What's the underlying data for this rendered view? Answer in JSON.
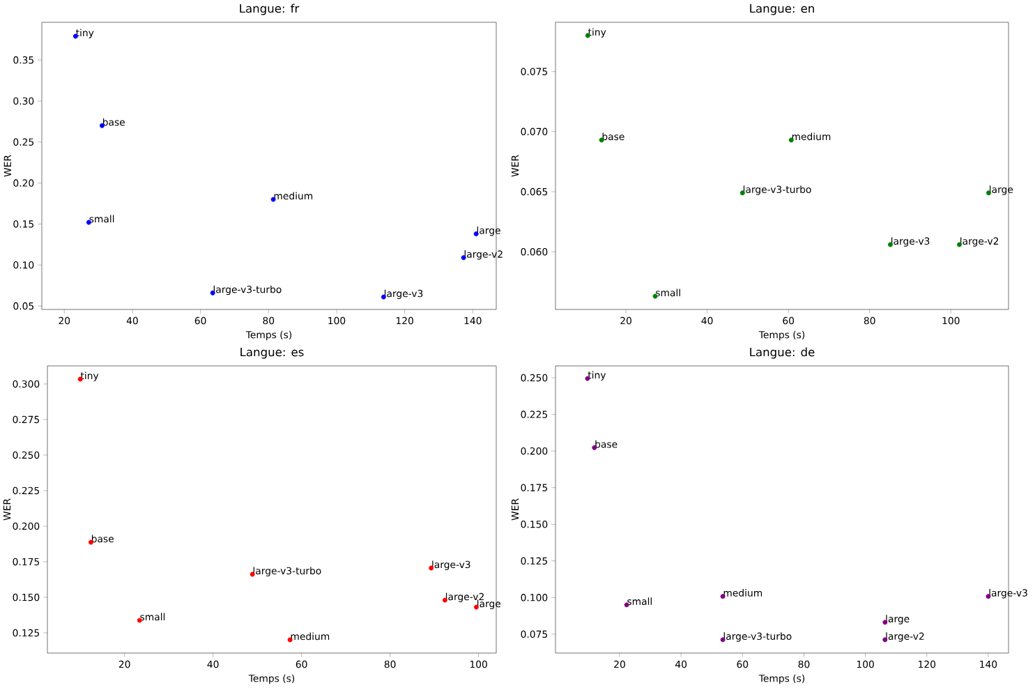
{
  "chart_data": [
    {
      "type": "scatter",
      "title": "Langue: fr",
      "xlabel": "Temps (s)",
      "ylabel": "WER",
      "series": [
        {
          "color": "#0000ff",
          "x": [
            23.3,
            31.1,
            27.2,
            81.4,
            141.0,
            137.3,
            63.6,
            113.8
          ],
          "values": [
            0.379,
            0.27,
            0.152,
            0.18,
            0.138,
            0.109,
            0.066,
            0.061
          ]
        }
      ],
      "annotations": [
        {
          "text": "tiny",
          "x": 23.3,
          "y": 0.379
        },
        {
          "text": "base",
          "x": 31.1,
          "y": 0.27
        },
        {
          "text": "small",
          "x": 27.2,
          "y": 0.152
        },
        {
          "text": "medium",
          "x": 81.4,
          "y": 0.18
        },
        {
          "text": "large",
          "x": 141.0,
          "y": 0.138
        },
        {
          "text": "large-v2",
          "x": 137.3,
          "y": 0.109
        },
        {
          "text": "large-v3-turbo",
          "x": 63.6,
          "y": 0.066
        },
        {
          "text": "large-v3",
          "x": 113.8,
          "y": 0.061
        }
      ],
      "xlim": [
        13.4,
        146.9
      ],
      "ylim": [
        0.0458,
        0.396
      ],
      "xticks": [
        20,
        40,
        60,
        80,
        100,
        120,
        140
      ],
      "yticks": [
        0.05,
        {
          "value": 0.1,
          "label": "0.10"
        },
        0.15,
        {
          "value": 0.2,
          "label": "0.20"
        },
        0.25,
        {
          "value": 0.3,
          "label": "0.30"
        },
        0.35
      ]
    },
    {
      "type": "scatter",
      "title": "Langue: en",
      "xlabel": "Temps (s)",
      "ylabel": "WER",
      "series": [
        {
          "color": "#008000",
          "x": [
            10.6,
            14.0,
            60.7,
            48.7,
            109.3,
            85.1,
            102.1,
            27.2
          ],
          "values": [
            0.078,
            0.0693,
            0.0693,
            0.0649,
            0.0649,
            0.0606,
            0.0606,
            0.0563
          ]
        }
      ],
      "annotations": [
        {
          "text": "tiny",
          "x": 10.6,
          "y": 0.078
        },
        {
          "text": "base",
          "x": 14.0,
          "y": 0.0693
        },
        {
          "text": "medium",
          "x": 60.7,
          "y": 0.0693
        },
        {
          "text": "large-v3-turbo",
          "x": 48.7,
          "y": 0.0649
        },
        {
          "text": "large",
          "x": 109.3,
          "y": 0.0649
        },
        {
          "text": "large-v3",
          "x": 85.1,
          "y": 0.0606
        },
        {
          "text": "large-v2",
          "x": 102.1,
          "y": 0.0606
        },
        {
          "text": "small",
          "x": 27.2,
          "y": 0.0563
        }
      ],
      "xlim": [
        2.66,
        114.2
      ],
      "ylim": [
        0.0552,
        0.0791
      ],
      "xticks": [
        20,
        40,
        60,
        80,
        100
      ],
      "yticks": [
        {
          "value": 0.06,
          "label": "0.060"
        },
        0.065,
        {
          "value": 0.07,
          "label": "0.070"
        },
        0.075
      ]
    },
    {
      "type": "scatter",
      "title": "Langue: es",
      "xlabel": "Temps (s)",
      "ylabel": "WER",
      "series": [
        {
          "color": "#ff0000",
          "x": [
            10.0,
            12.4,
            48.9,
            89.3,
            92.4,
            99.5,
            23.4,
            57.4
          ],
          "values": [
            0.3034,
            0.1887,
            0.1662,
            0.1706,
            0.148,
            0.1431,
            0.1338,
            0.1201
          ]
        }
      ],
      "annotations": [
        {
          "text": "tiny",
          "x": 10.0,
          "y": 0.3034
        },
        {
          "text": "base",
          "x": 12.4,
          "y": 0.1887
        },
        {
          "text": "large-v3-turbo",
          "x": 48.9,
          "y": 0.1662
        },
        {
          "text": "large-v3",
          "x": 89.3,
          "y": 0.1706
        },
        {
          "text": "large-v2",
          "x": 92.4,
          "y": 0.148
        },
        {
          "text": "large",
          "x": 99.5,
          "y": 0.1431
        },
        {
          "text": "small",
          "x": 23.4,
          "y": 0.1338
        },
        {
          "text": "medium",
          "x": 57.4,
          "y": 0.1201
        }
      ],
      "xlim": [
        2.57,
        104.0
      ],
      "ylim": [
        0.1108,
        0.3127
      ],
      "xticks": [
        20,
        40,
        60,
        80,
        100
      ],
      "yticks": [
        0.125,
        {
          "value": 0.15,
          "label": "0.150"
        },
        0.175,
        {
          "value": 0.2,
          "label": "0.200"
        },
        0.225,
        {
          "value": 0.25,
          "label": "0.250"
        },
        0.275,
        {
          "value": 0.3,
          "label": "0.300"
        }
      ]
    },
    {
      "type": "scatter",
      "title": "Langue: de",
      "xlabel": "Temps (s)",
      "ylabel": "WER",
      "series": [
        {
          "color": "#800080",
          "x": [
            9.56,
            11.8,
            22.3,
            53.6,
            53.6,
            106.4,
            106.4,
            140.0
          ],
          "values": [
            0.2495,
            0.2023,
            0.095,
            0.1008,
            0.0712,
            0.0831,
            0.0712,
            0.1008
          ]
        }
      ],
      "annotations": [
        {
          "text": "tiny",
          "x": 9.56,
          "y": 0.2495
        },
        {
          "text": "base",
          "x": 11.8,
          "y": 0.2023
        },
        {
          "text": "small",
          "x": 22.3,
          "y": 0.095
        },
        {
          "text": "medium",
          "x": 53.6,
          "y": 0.1008
        },
        {
          "text": "large-v3-turbo",
          "x": 53.6,
          "y": 0.0712
        },
        {
          "text": "large",
          "x": 106.4,
          "y": 0.0831
        },
        {
          "text": "large-v2",
          "x": 106.4,
          "y": 0.0712
        },
        {
          "text": "large-v3",
          "x": 140.0,
          "y": 0.1008
        }
      ],
      "xlim": [
        -0.87,
        146.6
      ],
      "ylim": [
        0.0621,
        0.2581
      ],
      "xticks": [
        20,
        40,
        60,
        80,
        100,
        120,
        140
      ],
      "yticks": [
        0.075,
        {
          "value": 0.1,
          "label": "0.100"
        },
        0.125,
        {
          "value": 0.15,
          "label": "0.150"
        },
        0.175,
        {
          "value": 0.2,
          "label": "0.200"
        },
        0.225,
        {
          "value": 0.25,
          "label": "0.250"
        }
      ]
    }
  ]
}
